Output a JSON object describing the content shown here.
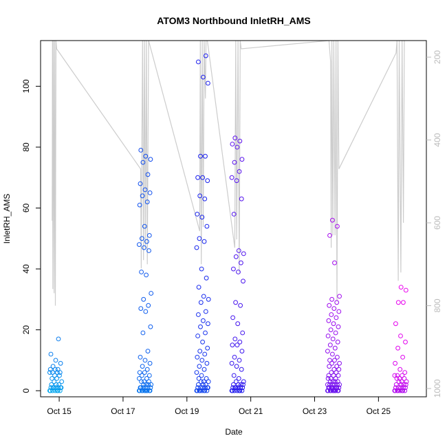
{
  "chart_data": {
    "type": "scatter",
    "title": "ATOM3 Northbound InletRH_AMS",
    "xlabel": "Date",
    "ylabel": "InletRH_AMS",
    "x_axis": {
      "type": "date",
      "range": [
        "2017-10-14T10:00",
        "2017-10-26T12:00"
      ],
      "ticks": [
        {
          "value": "2017-10-15",
          "label": "Oct 15"
        },
        {
          "value": "2017-10-17",
          "label": "Oct 17"
        },
        {
          "value": "2017-10-19",
          "label": "Oct 19"
        },
        {
          "value": "2017-10-21",
          "label": "Oct 21"
        },
        {
          "value": "2017-10-23",
          "label": "Oct 23"
        },
        {
          "value": "2017-10-25",
          "label": "Oct 25"
        }
      ]
    },
    "y_axis": {
      "range": [
        -2,
        115
      ],
      "ticks": [
        0,
        20,
        40,
        60,
        80,
        100
      ]
    },
    "y2_axis": {
      "reversed": true,
      "color": "#bbbbbb",
      "range": [
        1020,
        160
      ],
      "ticks": [
        200,
        400,
        600,
        800,
        1000
      ]
    },
    "grid": false,
    "legend": "none",
    "colors": {
      "line": "#cccccc",
      "gradient_start": "#00aaee",
      "gradient_mid": "#1a1aee",
      "gradient_end": "#ee00ee"
    },
    "flights": [
      {
        "day": 14.9,
        "rh": [
          0,
          0,
          0,
          0,
          0,
          0,
          0,
          1,
          1,
          1,
          1,
          1,
          1,
          1,
          2,
          2,
          2,
          3,
          3,
          4,
          4,
          5,
          5,
          6,
          6,
          6,
          6,
          7,
          7,
          7,
          8,
          9,
          10,
          12,
          17
        ]
      },
      {
        "day": 17.7,
        "rh": [
          0,
          0,
          0,
          0,
          0,
          0,
          0,
          0,
          0,
          0,
          1,
          1,
          1,
          1,
          1,
          1,
          2,
          2,
          2,
          2,
          3,
          3,
          3,
          4,
          4,
          5,
          5,
          6,
          6,
          7,
          8,
          9,
          10,
          11,
          13,
          19,
          21,
          26,
          27,
          28,
          30,
          32,
          38,
          39,
          46,
          47,
          48,
          49,
          50,
          51,
          54,
          61,
          62,
          64,
          65,
          66,
          68,
          71,
          75,
          76,
          77,
          79
        ]
      },
      {
        "day": 19.5,
        "rh": [
          0,
          0,
          0,
          0,
          0,
          0,
          0,
          0,
          1,
          1,
          1,
          1,
          1,
          1,
          2,
          2,
          2,
          3,
          3,
          3,
          4,
          4,
          5,
          6,
          7,
          8,
          9,
          10,
          11,
          12,
          13,
          14,
          16,
          18,
          19,
          21,
          22,
          23,
          25,
          26,
          29,
          30,
          31,
          34,
          37,
          40,
          47,
          49,
          50,
          54,
          57,
          58,
          63,
          64,
          69,
          70,
          70,
          77,
          77,
          101,
          103,
          108,
          110
        ]
      },
      {
        "day": 20.6,
        "rh": [
          0,
          0,
          0,
          0,
          0,
          0,
          0,
          1,
          1,
          1,
          1,
          1,
          1,
          2,
          2,
          2,
          2,
          3,
          3,
          4,
          5,
          7,
          8,
          9,
          10,
          11,
          13,
          15,
          15,
          16,
          17,
          19,
          22,
          24,
          28,
          29,
          36,
          39,
          40,
          42,
          44,
          45,
          46,
          58,
          63,
          69,
          70,
          72,
          75,
          76,
          80,
          81,
          82,
          83
        ]
      },
      {
        "day": 23.6,
        "rh": [
          0,
          0,
          0,
          0,
          0,
          0,
          0,
          0,
          0,
          0,
          1,
          1,
          1,
          1,
          1,
          1,
          1,
          1,
          2,
          2,
          2,
          2,
          2,
          2,
          3,
          3,
          3,
          3,
          4,
          4,
          4,
          5,
          5,
          5,
          6,
          6,
          7,
          7,
          8,
          8,
          9,
          9,
          10,
          10,
          11,
          12,
          13,
          14,
          15,
          16,
          17,
          18,
          19,
          20,
          21,
          22,
          23,
          24,
          25,
          26,
          27,
          28,
          29,
          30,
          31,
          42,
          51,
          54,
          56
        ]
      },
      {
        "day": 25.7,
        "rh": [
          0,
          0,
          0,
          0,
          0,
          0,
          0,
          0,
          1,
          1,
          1,
          1,
          1,
          2,
          2,
          2,
          2,
          3,
          3,
          3,
          4,
          4,
          4,
          5,
          5,
          5,
          6,
          7,
          9,
          11,
          14,
          16,
          18,
          22,
          29,
          29,
          33,
          34
        ]
      }
    ],
    "pressure_trace": [
      {
        "day": 14.78,
        "p": 595
      },
      {
        "day": 14.79,
        "p": 160
      },
      {
        "day": 14.8,
        "p": 760
      },
      {
        "day": 14.82,
        "p": 160
      },
      {
        "day": 14.84,
        "p": 770
      },
      {
        "day": 14.86,
        "p": 160
      },
      {
        "day": 14.88,
        "p": 800
      },
      {
        "day": 14.9,
        "p": 160
      },
      {
        "day": 14.92,
        "p": 180
      },
      {
        "day": 17.55,
        "p": 470
      },
      {
        "day": 17.57,
        "p": 710
      },
      {
        "day": 17.59,
        "p": 410
      },
      {
        "day": 17.61,
        "p": 160
      },
      {
        "day": 17.64,
        "p": 690
      },
      {
        "day": 17.67,
        "p": 160
      },
      {
        "day": 17.7,
        "p": 660
      },
      {
        "day": 17.73,
        "p": 160
      },
      {
        "day": 17.76,
        "p": 700
      },
      {
        "day": 17.8,
        "p": 160
      },
      {
        "day": 19.4,
        "p": 620
      },
      {
        "day": 19.42,
        "p": 160
      },
      {
        "day": 19.45,
        "p": 700
      },
      {
        "day": 19.48,
        "p": 160
      },
      {
        "day": 19.51,
        "p": 610
      },
      {
        "day": 19.54,
        "p": 160
      },
      {
        "day": 19.58,
        "p": 300
      },
      {
        "day": 19.6,
        "p": 160
      },
      {
        "day": 19.64,
        "p": 160
      },
      {
        "day": 20.5,
        "p": 660
      },
      {
        "day": 20.53,
        "p": 160
      },
      {
        "day": 20.56,
        "p": 640
      },
      {
        "day": 20.6,
        "p": 160
      },
      {
        "day": 20.64,
        "p": 720
      },
      {
        "day": 20.67,
        "p": 160
      },
      {
        "day": 20.7,
        "p": 180
      },
      {
        "day": 23.45,
        "p": 160
      },
      {
        "day": 23.5,
        "p": 210
      },
      {
        "day": 23.52,
        "p": 660
      },
      {
        "day": 23.54,
        "p": 160
      },
      {
        "day": 23.57,
        "p": 630
      },
      {
        "day": 23.6,
        "p": 160
      },
      {
        "day": 23.64,
        "p": 630
      },
      {
        "day": 23.67,
        "p": 160
      },
      {
        "day": 23.7,
        "p": 790
      },
      {
        "day": 23.73,
        "p": 160
      },
      {
        "day": 23.76,
        "p": 470
      },
      {
        "day": 25.55,
        "p": 190
      },
      {
        "day": 25.58,
        "p": 160
      },
      {
        "day": 25.62,
        "p": 740
      },
      {
        "day": 25.65,
        "p": 160
      },
      {
        "day": 25.7,
        "p": 720
      },
      {
        "day": 25.74,
        "p": 160
      },
      {
        "day": 25.78,
        "p": 600
      },
      {
        "day": 25.81,
        "p": 160
      }
    ]
  }
}
